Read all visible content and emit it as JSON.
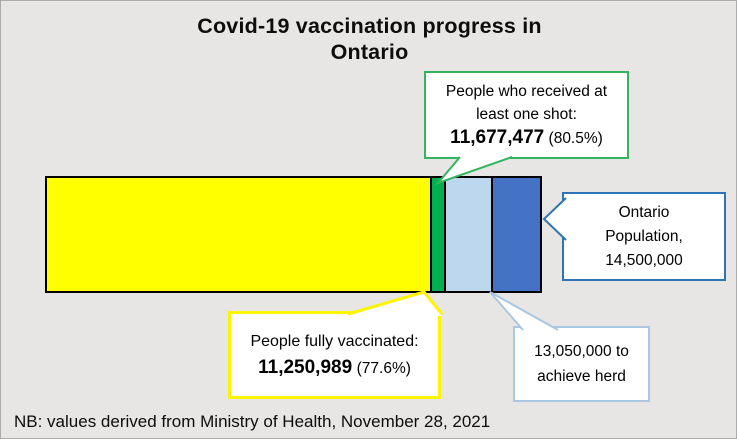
{
  "title_lines": [
    "Covid-19 vaccination progress in",
    "Ontario"
  ],
  "footer_note": "NB: values derived from Ministry of Health, November 28, 2021",
  "background_color": "#E7E6E4",
  "chart_data": {
    "type": "bar",
    "variant": "proportional-stacked-horizontal",
    "title": "Covid-19 vaccination progress in Ontario",
    "total": 14500000,
    "segments": [
      {
        "label": "People fully vaccinated",
        "cumulative": 11250989,
        "percent": "77.6%",
        "color": "#FFFF00"
      },
      {
        "label": "People who received at least one shot",
        "cumulative": 11677477,
        "percent": "80.5%",
        "color": "#00B050"
      },
      {
        "label": "13,050,000 to achieve herd",
        "cumulative": 13050000,
        "color": "#BDD7EE"
      },
      {
        "label": "Ontario Population",
        "cumulative": 14500000,
        "color": "#4472C4"
      }
    ],
    "note": "NB: values derived from Ministry of Health, November 28, 2021"
  },
  "callouts": {
    "one_shot": {
      "line1": "People who received at",
      "line2": "least one shot:",
      "value": "11,677,477",
      "percent": "(80.5%)",
      "border_color": "#34B45F"
    },
    "population": {
      "line1": "Ontario",
      "line2": "Population,",
      "line3": "14,500,000",
      "border_color": "#2E75B6"
    },
    "fully_vaccinated": {
      "line1": "People fully vaccinated:",
      "value": "11,250,989",
      "percent": "(77.6%)",
      "border_color": "#FCF400"
    },
    "herd": {
      "line1": "13,050,000 to",
      "line2": "achieve herd",
      "border_color": "#A9C7E1"
    }
  }
}
